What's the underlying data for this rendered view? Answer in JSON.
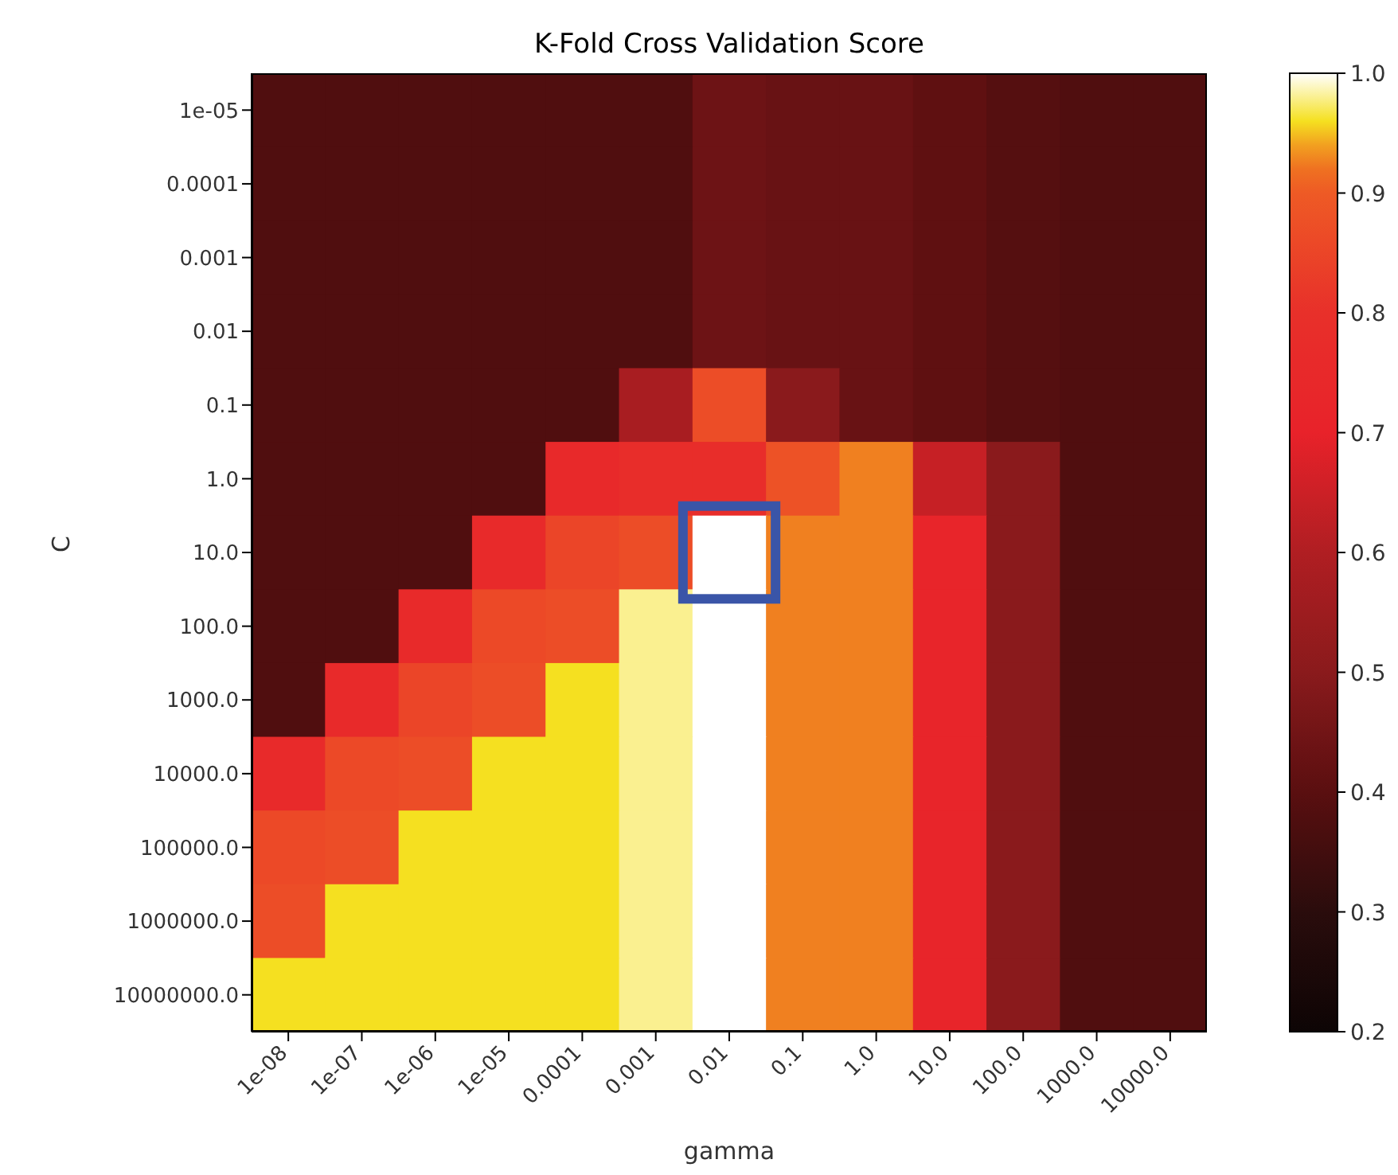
{
  "chart_data": {
    "type": "heatmap",
    "title": "K-Fold Cross Validation Score",
    "xlabel": "gamma",
    "ylabel": "C",
    "categories": [
      "1e-08",
      "1e-07",
      "1e-06",
      "1e-05",
      "0.0001",
      "0.001",
      "0.01",
      "0.1",
      "1.0",
      "10.0",
      "100.0",
      "1000.0",
      "10000.0"
    ],
    "y_categories": [
      "1e-05",
      "0.0001",
      "0.001",
      "0.01",
      "0.1",
      "1.0",
      "10.0",
      "100.0",
      "1000.0",
      "10000.0",
      "100000.0",
      "1000000.0",
      "10000000.0"
    ],
    "cells": [
      [
        0.38,
        0.38,
        0.38,
        0.38,
        0.38,
        0.38,
        0.44,
        0.43,
        0.43,
        0.41,
        0.39,
        0.38,
        0.38
      ],
      [
        0.38,
        0.38,
        0.38,
        0.38,
        0.38,
        0.38,
        0.44,
        0.43,
        0.43,
        0.41,
        0.39,
        0.38,
        0.38
      ],
      [
        0.38,
        0.38,
        0.38,
        0.38,
        0.38,
        0.38,
        0.44,
        0.43,
        0.43,
        0.41,
        0.39,
        0.38,
        0.38
      ],
      [
        0.38,
        0.38,
        0.38,
        0.38,
        0.38,
        0.38,
        0.44,
        0.43,
        0.43,
        0.41,
        0.39,
        0.38,
        0.38
      ],
      [
        0.38,
        0.38,
        0.38,
        0.38,
        0.38,
        0.58,
        0.87,
        0.5,
        0.43,
        0.41,
        0.39,
        0.38,
        0.38
      ],
      [
        0.38,
        0.38,
        0.38,
        0.38,
        0.75,
        0.78,
        0.78,
        0.88,
        0.93,
        0.64,
        0.5,
        0.38,
        0.38
      ],
      [
        0.38,
        0.38,
        0.38,
        0.76,
        0.85,
        0.87,
        1.0,
        0.93,
        0.93,
        0.72,
        0.5,
        0.38,
        0.38
      ],
      [
        0.38,
        0.38,
        0.76,
        0.86,
        0.87,
        0.98,
        1.0,
        0.93,
        0.93,
        0.72,
        0.5,
        0.38,
        0.38
      ],
      [
        0.38,
        0.76,
        0.85,
        0.87,
        0.96,
        0.98,
        1.0,
        0.93,
        0.93,
        0.72,
        0.5,
        0.38,
        0.38
      ],
      [
        0.76,
        0.86,
        0.87,
        0.96,
        0.96,
        0.98,
        1.0,
        0.93,
        0.93,
        0.72,
        0.5,
        0.38,
        0.38
      ],
      [
        0.86,
        0.87,
        0.96,
        0.96,
        0.96,
        0.98,
        1.0,
        0.93,
        0.93,
        0.72,
        0.5,
        0.38,
        0.38
      ],
      [
        0.87,
        0.96,
        0.96,
        0.96,
        0.96,
        0.98,
        1.0,
        0.93,
        0.93,
        0.72,
        0.5,
        0.38,
        0.38
      ],
      [
        0.96,
        0.96,
        0.96,
        0.96,
        0.96,
        0.98,
        1.0,
        0.93,
        0.93,
        0.72,
        0.5,
        0.38,
        0.38
      ]
    ],
    "clim": [
      0.2,
      1.0
    ],
    "cticks": [
      0.2,
      0.3,
      0.4,
      0.5,
      0.6,
      0.7,
      0.8,
      0.9,
      {
        "value": 1,
        "label": "1.0"
      }
    ]
  }
}
